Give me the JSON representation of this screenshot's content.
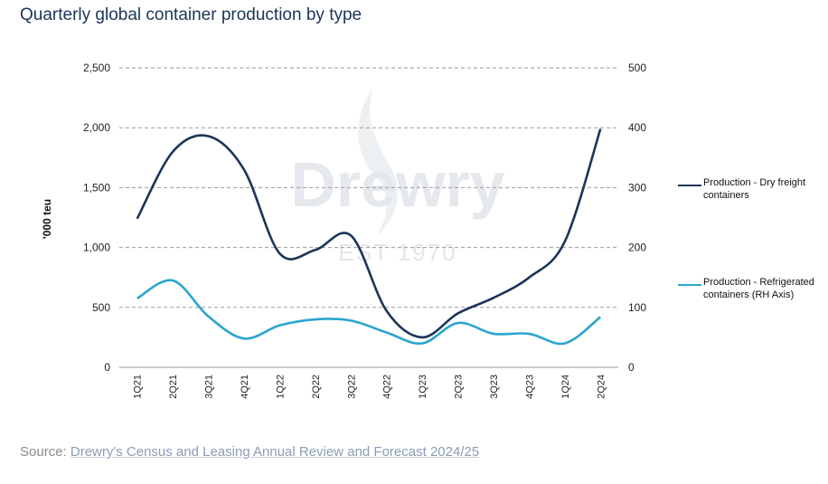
{
  "title": "Quarterly global container production by type",
  "source": {
    "prefix": "Source: ",
    "link_text": "Drewry's Census and Leasing Annual Review and Forecast 2024/25"
  },
  "watermark": {
    "brand": "Drewry",
    "est": "EST 1970"
  },
  "colors": {
    "dry": "#1b3558",
    "reefer": "#2aa5cf",
    "title": "#1b3558",
    "grid": "#9a9a9a"
  },
  "chart_data": {
    "type": "line",
    "ylabel": "'000 teu",
    "categories": [
      "1Q21",
      "2Q21",
      "3Q21",
      "4Q21",
      "1Q22",
      "2Q22",
      "3Q22",
      "4Q22",
      "1Q23",
      "2Q23",
      "3Q23",
      "4Q23",
      "1Q24",
      "2Q24"
    ],
    "ylim": [
      0,
      2500
    ],
    "y2lim": [
      0,
      500
    ],
    "yticks": [
      "2,500",
      "2,000",
      "1,500",
      "1,000",
      "500",
      "0"
    ],
    "y2ticks": [
      "500",
      "400",
      "300",
      "200",
      "100",
      "0"
    ],
    "grid": true,
    "legend_position": "right",
    "series": [
      {
        "name": "Production - Dry freight containers",
        "axis": "left",
        "values": [
          1240,
          1800,
          1930,
          1650,
          950,
          980,
          1100,
          470,
          250,
          450,
          580,
          750,
          1050,
          1990
        ]
      },
      {
        "name": "Production - Refrigerated containers (RH Axis)",
        "axis": "right",
        "values": [
          115,
          145,
          85,
          48,
          70,
          80,
          78,
          58,
          40,
          74,
          56,
          56,
          40,
          84
        ]
      }
    ]
  }
}
